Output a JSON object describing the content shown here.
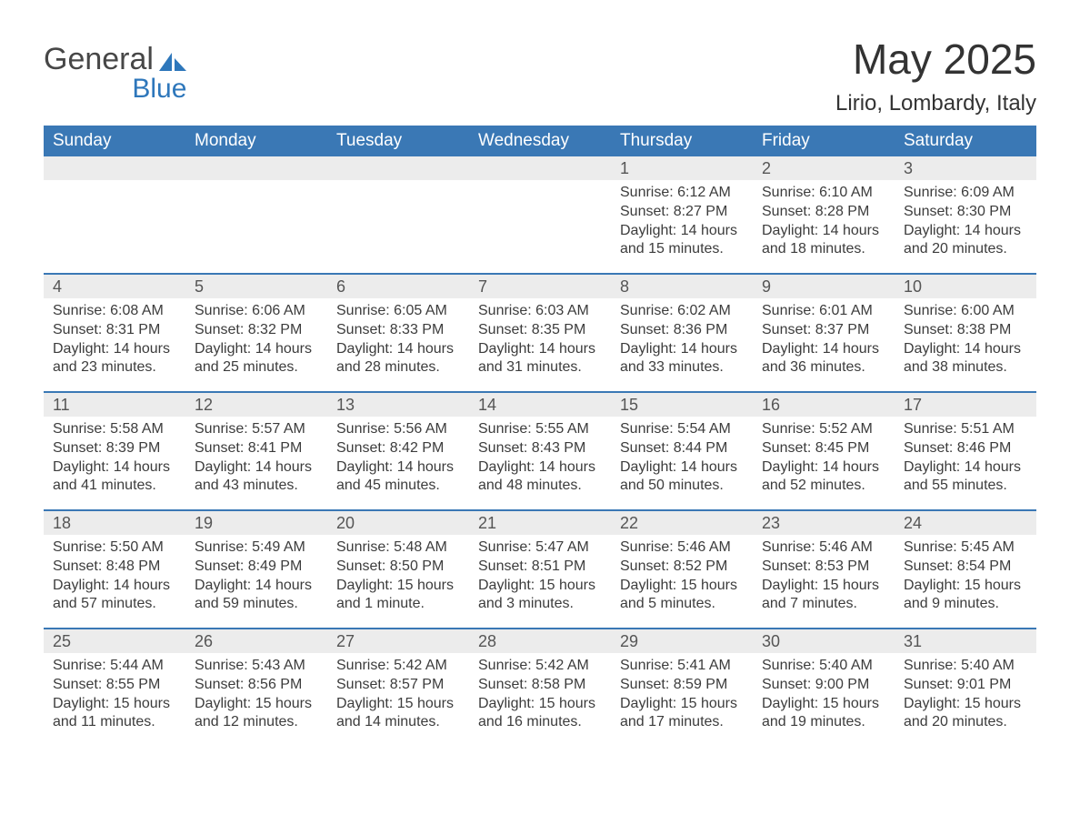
{
  "logo": {
    "word1": "General",
    "word2": "Blue"
  },
  "title": "May 2025",
  "location": "Lirio, Lombardy, Italy",
  "colors": {
    "header_bg": "#3a78b5",
    "header_text": "#ffffff",
    "daynum_bg": "#ececec",
    "text": "#333333",
    "logo_blue": "#2e77bb",
    "week_border": "#3a78b5"
  },
  "fonts": {
    "title_size_pt": 34,
    "location_size_pt": 18,
    "dayhead_size_pt": 14,
    "body_size_pt": 12
  },
  "day_names": [
    "Sunday",
    "Monday",
    "Tuesday",
    "Wednesday",
    "Thursday",
    "Friday",
    "Saturday"
  ],
  "weeks": [
    [
      null,
      null,
      null,
      null,
      {
        "n": "1",
        "sunrise": "6:12 AM",
        "sunset": "8:27 PM",
        "daylight": "14 hours and 15 minutes."
      },
      {
        "n": "2",
        "sunrise": "6:10 AM",
        "sunset": "8:28 PM",
        "daylight": "14 hours and 18 minutes."
      },
      {
        "n": "3",
        "sunrise": "6:09 AM",
        "sunset": "8:30 PM",
        "daylight": "14 hours and 20 minutes."
      }
    ],
    [
      {
        "n": "4",
        "sunrise": "6:08 AM",
        "sunset": "8:31 PM",
        "daylight": "14 hours and 23 minutes."
      },
      {
        "n": "5",
        "sunrise": "6:06 AM",
        "sunset": "8:32 PM",
        "daylight": "14 hours and 25 minutes."
      },
      {
        "n": "6",
        "sunrise": "6:05 AM",
        "sunset": "8:33 PM",
        "daylight": "14 hours and 28 minutes."
      },
      {
        "n": "7",
        "sunrise": "6:03 AM",
        "sunset": "8:35 PM",
        "daylight": "14 hours and 31 minutes."
      },
      {
        "n": "8",
        "sunrise": "6:02 AM",
        "sunset": "8:36 PM",
        "daylight": "14 hours and 33 minutes."
      },
      {
        "n": "9",
        "sunrise": "6:01 AM",
        "sunset": "8:37 PM",
        "daylight": "14 hours and 36 minutes."
      },
      {
        "n": "10",
        "sunrise": "6:00 AM",
        "sunset": "8:38 PM",
        "daylight": "14 hours and 38 minutes."
      }
    ],
    [
      {
        "n": "11",
        "sunrise": "5:58 AM",
        "sunset": "8:39 PM",
        "daylight": "14 hours and 41 minutes."
      },
      {
        "n": "12",
        "sunrise": "5:57 AM",
        "sunset": "8:41 PM",
        "daylight": "14 hours and 43 minutes."
      },
      {
        "n": "13",
        "sunrise": "5:56 AM",
        "sunset": "8:42 PM",
        "daylight": "14 hours and 45 minutes."
      },
      {
        "n": "14",
        "sunrise": "5:55 AM",
        "sunset": "8:43 PM",
        "daylight": "14 hours and 48 minutes."
      },
      {
        "n": "15",
        "sunrise": "5:54 AM",
        "sunset": "8:44 PM",
        "daylight": "14 hours and 50 minutes."
      },
      {
        "n": "16",
        "sunrise": "5:52 AM",
        "sunset": "8:45 PM",
        "daylight": "14 hours and 52 minutes."
      },
      {
        "n": "17",
        "sunrise": "5:51 AM",
        "sunset": "8:46 PM",
        "daylight": "14 hours and 55 minutes."
      }
    ],
    [
      {
        "n": "18",
        "sunrise": "5:50 AM",
        "sunset": "8:48 PM",
        "daylight": "14 hours and 57 minutes."
      },
      {
        "n": "19",
        "sunrise": "5:49 AM",
        "sunset": "8:49 PM",
        "daylight": "14 hours and 59 minutes."
      },
      {
        "n": "20",
        "sunrise": "5:48 AM",
        "sunset": "8:50 PM",
        "daylight": "15 hours and 1 minute."
      },
      {
        "n": "21",
        "sunrise": "5:47 AM",
        "sunset": "8:51 PM",
        "daylight": "15 hours and 3 minutes."
      },
      {
        "n": "22",
        "sunrise": "5:46 AM",
        "sunset": "8:52 PM",
        "daylight": "15 hours and 5 minutes."
      },
      {
        "n": "23",
        "sunrise": "5:46 AM",
        "sunset": "8:53 PM",
        "daylight": "15 hours and 7 minutes."
      },
      {
        "n": "24",
        "sunrise": "5:45 AM",
        "sunset": "8:54 PM",
        "daylight": "15 hours and 9 minutes."
      }
    ],
    [
      {
        "n": "25",
        "sunrise": "5:44 AM",
        "sunset": "8:55 PM",
        "daylight": "15 hours and 11 minutes."
      },
      {
        "n": "26",
        "sunrise": "5:43 AM",
        "sunset": "8:56 PM",
        "daylight": "15 hours and 12 minutes."
      },
      {
        "n": "27",
        "sunrise": "5:42 AM",
        "sunset": "8:57 PM",
        "daylight": "15 hours and 14 minutes."
      },
      {
        "n": "28",
        "sunrise": "5:42 AM",
        "sunset": "8:58 PM",
        "daylight": "15 hours and 16 minutes."
      },
      {
        "n": "29",
        "sunrise": "5:41 AM",
        "sunset": "8:59 PM",
        "daylight": "15 hours and 17 minutes."
      },
      {
        "n": "30",
        "sunrise": "5:40 AM",
        "sunset": "9:00 PM",
        "daylight": "15 hours and 19 minutes."
      },
      {
        "n": "31",
        "sunrise": "5:40 AM",
        "sunset": "9:01 PM",
        "daylight": "15 hours and 20 minutes."
      }
    ]
  ],
  "labels": {
    "sunrise": "Sunrise: ",
    "sunset": "Sunset: ",
    "daylight": "Daylight: "
  }
}
